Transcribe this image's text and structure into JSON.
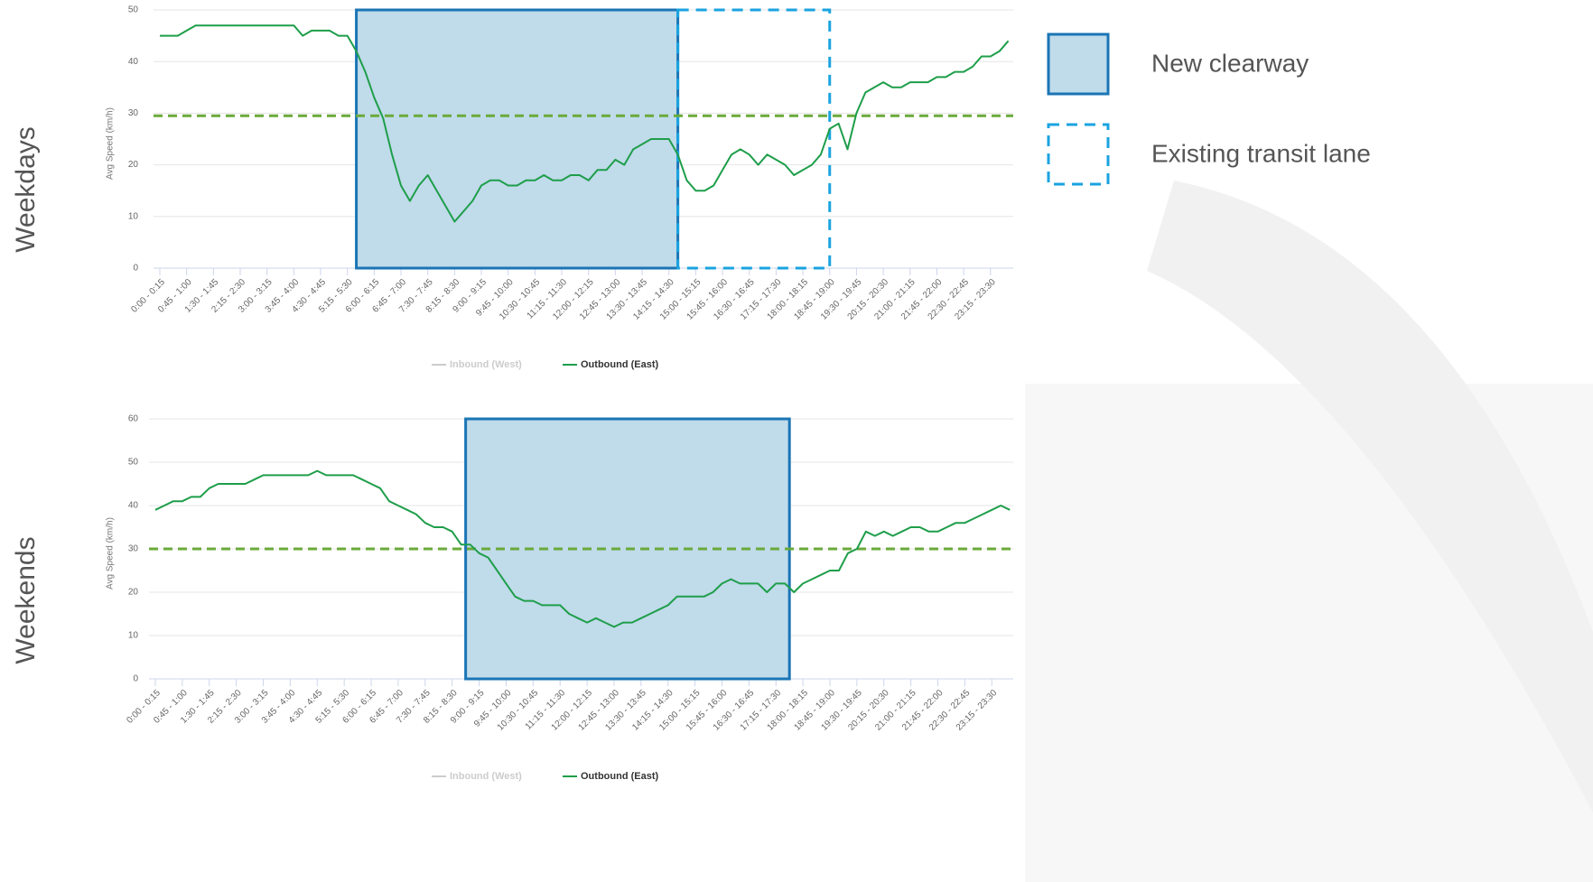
{
  "chart_data": [
    {
      "type": "line",
      "title": "Weekdays",
      "y_label": "Avg Speed (km/h)",
      "categories": [
        "0:00 - 0:15",
        null,
        null,
        "0:45 - 1:00",
        null,
        null,
        "1:30 - 1:45",
        null,
        null,
        "2:15 - 2:30",
        null,
        null,
        "3:00 - 3:15",
        null,
        null,
        "3:45 - 4:00",
        null,
        null,
        "4:30 - 4:45",
        null,
        null,
        "5:15 - 5:30",
        null,
        null,
        "6:00 - 6:15",
        null,
        null,
        "6:45 - 7:00",
        null,
        null,
        "7:30 - 7:45",
        null,
        null,
        "8:15 - 8:30",
        null,
        null,
        "9:00 - 9:15",
        null,
        null,
        "9:45 - 10:00",
        null,
        null,
        "10:30 - 10:45",
        null,
        null,
        "11:15 - 11:30",
        null,
        null,
        "12:00 - 12:15",
        null,
        null,
        "12:45 - 13:00",
        null,
        null,
        "13:30 - 13:45",
        null,
        null,
        "14:15 - 14:30",
        null,
        null,
        "15:00 - 15:15",
        null,
        null,
        "15:45 - 16:00",
        null,
        null,
        "16:30 - 16:45",
        null,
        null,
        "17:15 - 17:30",
        null,
        null,
        "18:00 - 18:15",
        null,
        null,
        "18:45 - 19:00",
        null,
        null,
        "19:30 - 19:45",
        null,
        null,
        "20:15 - 20:30",
        null,
        null,
        "21:00 - 21:15",
        null,
        null,
        "21:45 - 22:00",
        null,
        null,
        "22:30 - 22:45",
        null,
        null,
        "23:15 - 23:30",
        null,
        null
      ],
      "series": [
        {
          "name": "Inbound (West)",
          "color": "#cccccc",
          "hidden": true
        },
        {
          "name": "Outbound (East)",
          "color": "#1e9e4a",
          "values": [
            45,
            45,
            45,
            46,
            47,
            47,
            47,
            47,
            47,
            47,
            47,
            47,
            47,
            47,
            47,
            47,
            45,
            46,
            46,
            46,
            45,
            45,
            42,
            38,
            33,
            29,
            22,
            16,
            13,
            16,
            18,
            15,
            12,
            9,
            11,
            13,
            16,
            17,
            17,
            16,
            16,
            17,
            17,
            18,
            17,
            17,
            18,
            18,
            17,
            19,
            19,
            21,
            20,
            23,
            24,
            25,
            25,
            25,
            22,
            17,
            15,
            15,
            16,
            19,
            22,
            23,
            22,
            20,
            22,
            21,
            20,
            18,
            19,
            20,
            22,
            27,
            28,
            23,
            30,
            34,
            35,
            36,
            35,
            35,
            36,
            36,
            36,
            37,
            37,
            38,
            38,
            39,
            41,
            41,
            42,
            44
          ]
        }
      ],
      "reference_line": 29.5,
      "reference_color": "#6aaa3a",
      "bands": [
        {
          "name": "New clearway",
          "from": 22,
          "to": 58,
          "fill": "#c0dbea",
          "stroke": "#1a75b5",
          "dashed": false
        },
        {
          "name": "Existing transit lane",
          "from": 58,
          "to": 75,
          "fill": "none",
          "stroke": "#1aa3e0",
          "dashed": true
        }
      ],
      "ylim": [
        0,
        50
      ],
      "yticks": [
        0,
        10,
        20,
        30,
        40,
        50
      ],
      "grid": true
    },
    {
      "type": "line",
      "title": "Weekends",
      "y_label": "Avg Speed (km/h)",
      "categories": [
        "0:00 - 0:15",
        null,
        null,
        "0:45 - 1:00",
        null,
        null,
        "1:30 - 1:45",
        null,
        null,
        "2:15 - 2:30",
        null,
        null,
        "3:00 - 3:15",
        null,
        null,
        "3:45 - 4:00",
        null,
        null,
        "4:30 - 4:45",
        null,
        null,
        "5:15 - 5:30",
        null,
        null,
        "6:00 - 6:15",
        null,
        null,
        "6:45 - 7:00",
        null,
        null,
        "7:30 - 7:45",
        null,
        null,
        "8:15 - 8:30",
        null,
        null,
        "9:00 - 9:15",
        null,
        null,
        "9:45 - 10:00",
        null,
        null,
        "10:30 - 10:45",
        null,
        null,
        "11:15 - 11:30",
        null,
        null,
        "12:00 - 12:15",
        null,
        null,
        "12:45 - 13:00",
        null,
        null,
        "13:30 - 13:45",
        null,
        null,
        "14:15 - 14:30",
        null,
        null,
        "15:00 - 15:15",
        null,
        null,
        "15:45 - 16:00",
        null,
        null,
        "16:30 - 16:45",
        null,
        null,
        "17:15 - 17:30",
        null,
        null,
        "18:00 - 18:15",
        null,
        null,
        "18:45 - 19:00",
        null,
        null,
        "19:30 - 19:45",
        null,
        null,
        "20:15 - 20:30",
        null,
        null,
        "21:00 - 21:15",
        null,
        null,
        "21:45 - 22:00",
        null,
        null,
        "22:30 - 22:45",
        null,
        null,
        "23:15 - 23:30",
        null,
        null
      ],
      "series": [
        {
          "name": "Inbound (West)",
          "color": "#cccccc",
          "hidden": true
        },
        {
          "name": "Outbound (East)",
          "color": "#1e9e4a",
          "values": [
            39,
            40,
            41,
            41,
            42,
            42,
            44,
            45,
            45,
            45,
            45,
            46,
            47,
            47,
            47,
            47,
            47,
            47,
            48,
            47,
            47,
            47,
            47,
            46,
            45,
            44,
            41,
            40,
            39,
            38,
            36,
            35,
            35,
            34,
            31,
            31,
            29,
            28,
            25,
            22,
            19,
            18,
            18,
            17,
            17,
            17,
            15,
            14,
            13,
            14,
            13,
            12,
            13,
            13,
            14,
            15,
            16,
            17,
            19,
            19,
            19,
            19,
            20,
            22,
            23,
            22,
            22,
            22,
            20,
            22,
            22,
            20,
            22,
            23,
            24,
            25,
            25,
            29,
            30,
            34,
            33,
            34,
            33,
            34,
            35,
            35,
            34,
            34,
            35,
            36,
            36,
            37,
            38,
            39,
            40,
            39
          ]
        }
      ],
      "reference_line": 30,
      "reference_color": "#6aaa3a",
      "bands": [
        {
          "name": "New clearway",
          "from": 34.5,
          "to": 70.5,
          "fill": "#c0dbea",
          "stroke": "#1a75b5",
          "dashed": false
        }
      ],
      "ylim": [
        0,
        60
      ],
      "yticks": [
        0,
        10,
        20,
        30,
        40,
        50,
        60
      ],
      "grid": true
    }
  ]
}
